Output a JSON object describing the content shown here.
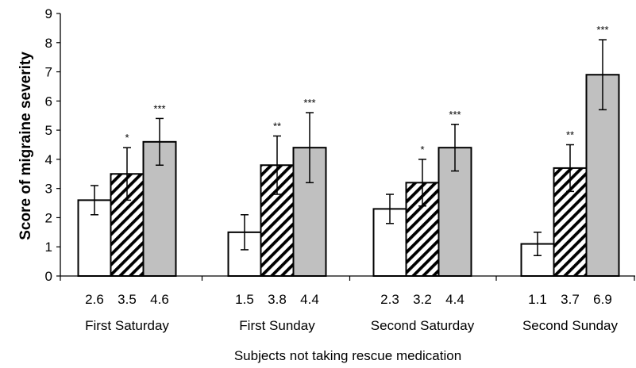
{
  "chart_data": {
    "type": "bar",
    "title": "",
    "xlabel": "Subjects not taking rescue medication",
    "ylabel": "Score of migraine severity",
    "ylim": [
      0,
      9
    ],
    "yticks": [
      "0",
      "1",
      "2",
      "3",
      "4",
      "5",
      "6",
      "7",
      "8",
      "9"
    ],
    "grid": false,
    "legend": "none",
    "categories": [
      "First Saturday",
      "First Sunday",
      "Second Saturday",
      "Second Sunday"
    ],
    "series": [
      {
        "fill": "#ffffff",
        "pattern": "none",
        "values": [
          2.6,
          1.5,
          2.3,
          1.1
        ],
        "value_labels": [
          "2.6",
          "1.5",
          "2.3",
          "1.1"
        ],
        "error": [
          0.5,
          0.6,
          0.5,
          0.4
        ],
        "significance": [
          "",
          "",
          "",
          ""
        ]
      },
      {
        "fill": "#ffffff",
        "pattern": "diagonal-hatch",
        "values": [
          3.5,
          3.8,
          3.2,
          3.7
        ],
        "value_labels": [
          "3.5",
          "3.8",
          "3.2",
          "3.7"
        ],
        "error": [
          0.9,
          1.0,
          0.8,
          0.8
        ],
        "significance": [
          "*",
          "**",
          "*",
          "**"
        ]
      },
      {
        "fill": "#c0c0c0",
        "pattern": "none",
        "values": [
          4.6,
          4.4,
          4.4,
          6.9
        ],
        "value_labels": [
          "4.6",
          "4.4",
          "4.4",
          "6.9"
        ],
        "error": [
          0.8,
          1.2,
          0.8,
          1.2
        ],
        "significance": [
          "***",
          "***",
          "***",
          "***"
        ]
      }
    ]
  }
}
